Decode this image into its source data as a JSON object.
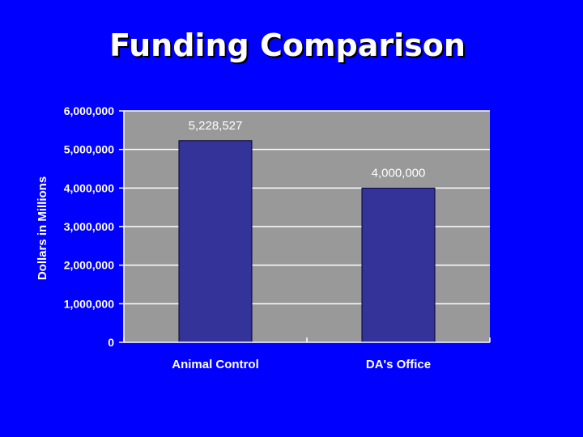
{
  "slide": {
    "title": "Funding Comparison"
  },
  "colors": {
    "background": "#0000ff",
    "plot_area": "#999999",
    "bar": "#333399",
    "gridline": "#ffffff",
    "text": "#ffffff"
  },
  "chart_data": {
    "type": "bar",
    "title": "",
    "xlabel": "",
    "ylabel": "Dollars in Millions",
    "categories": [
      "Animal Control",
      "DA's Office"
    ],
    "values": [
      5228527,
      4000000
    ],
    "data_labels": [
      "5,228,527",
      "4,000,000"
    ],
    "ylim": [
      0,
      6000000
    ],
    "yticks": [
      0,
      1000000,
      2000000,
      3000000,
      4000000,
      5000000,
      6000000
    ],
    "ytick_labels": [
      "0",
      "1,000,000",
      "2,000,000",
      "3,000,000",
      "4,000,000",
      "5,000,000",
      "6,000,000"
    ],
    "grid": true,
    "legend": "none"
  }
}
